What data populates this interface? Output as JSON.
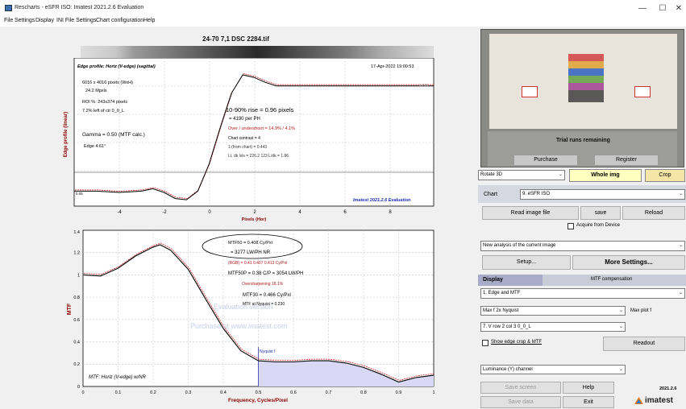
{
  "window": {
    "title": "Rescharts - eSFR ISO: Imatest 2021.2.6 Evaluation",
    "min_label": "—",
    "max_label": "☐",
    "close_label": "✕"
  },
  "menu": [
    "File",
    "Settings",
    "Display",
    "INI File Settings",
    "Chart configuration",
    "Help"
  ],
  "figure_title": "24-70 7,1 DSC 2284.tif",
  "edge_plot": {
    "header_left": "Edge profile: Horiz (V-edge) (sagittal)",
    "header_right": "17-Apr-2022 19:00:53",
    "info_lines": [
      "6016 x 4016 pixels (WxH)",
      "24.2 Mpxls",
      "ROI %: 243x374 pixels",
      "7.2% left of ctr 0_0_L"
    ],
    "gamma": "Gamma = 0.50 (MTF calc.)",
    "edge_angle": "Edge 4.61°",
    "rise": "10-90% rise = 0.96 pixels",
    "per_ph": "= 4190 per PH",
    "overshoot": "Over / undershoot = 14.9% / 4.1%",
    "contrast": "Chart contrast = 4",
    "chart_light": "1:(from chart) = 0.443",
    "levels": "Lt, dk lvls = 226.2 123 L/dk = 1.86",
    "watermark": "Imatest 2021.2.6 Evaluation",
    "ylabel": "Edge profile (linear)",
    "xlabel": "Pixels (Hor)",
    "xticks": [
      "-4",
      "-2",
      "0",
      "2",
      "4",
      "6",
      "8"
    ],
    "right_marker": "0.766",
    "left_marker": "0.05"
  },
  "mtf_plot": {
    "mtf50": "MTF50 = 0.408 Cy/Pxl",
    "mtf50_lw": "= 3277 LW/PH NR",
    "raw": "(RGB) = 0.41 0.407 0.413 Cy/Pxl",
    "mtf50p": "MTF50P = 0.38 C/P = 3054 LW/PH",
    "oversharp": "Oversharpening 18.1%",
    "mtf30": "MTF30 = 0.466 Cy/Pxl",
    "nyq": "MTF at Nyquist = 0.230",
    "watermark1": "Evaluation version",
    "watermark2": "Purchase at www.imatest.com",
    "nyquist_label": "Nyquist f",
    "legend": "MTF: Horiz (V-edge) w/NR",
    "ylabel": "MTF",
    "xlabel": "Frequency, Cycles/Pixel",
    "xticks": [
      "0",
      "0.1",
      "0.2",
      "0.3",
      "0.4",
      "0.5",
      "0.6",
      "0.7",
      "0.8",
      "0.9",
      "1"
    ],
    "yticks": [
      "0",
      "0.2",
      "0.4",
      "0.6",
      "0.8",
      "1",
      "1.2",
      "1.4"
    ]
  },
  "right_panel": {
    "trial_text": "Trial runs remaining",
    "purchase": "Purchase",
    "register": "Register",
    "rotate": "Rotate 3D",
    "whole_img": "Whole img",
    "crop": "Crop",
    "chart_label": "Chart",
    "chart_value": "9. eSFR ISO",
    "read_image": "Read image file",
    "save": "save",
    "reload": "Reload",
    "acquire": "Acquire from Device",
    "new_analysis": "New analysis of the current image",
    "setup": "Setup...",
    "more_settings": "More Settings...",
    "display_tab": "Display",
    "mtf_comp_tab": "MTF compensation",
    "display_select": "1. Edge and MTF",
    "max_select": "Max f  2x Nyquist",
    "max_plot": "Max plot f",
    "roi_select": "7. V row 2 col 3  0_0_L",
    "show_edge": "Show edge crop & MTF",
    "readout": "Readout",
    "luminance": "Luminance (Y) channel",
    "save_screen": "Save screen",
    "help": "Help",
    "version": "2021.2.6",
    "save_data": "Save data",
    "exit": "Exit",
    "brand": "imatest"
  },
  "chart_data": [
    {
      "type": "line",
      "title": "Edge profile: Horiz (V-edge) (sagittal)",
      "xlabel": "Pixels (Hor)",
      "ylabel": "Edge profile (linear)",
      "xlim": [
        -6,
        10
      ],
      "x": [
        -6,
        -5,
        -4,
        -3,
        -2.5,
        -2,
        -1.5,
        -1,
        -0.5,
        0,
        0.5,
        1,
        1.5,
        2,
        2.5,
        3,
        4,
        5,
        6,
        8,
        10
      ],
      "series": [
        {
          "values": [
            0.03,
            0.03,
            0.02,
            0.03,
            0.05,
            0.02,
            -0.03,
            -0.04,
            0.03,
            0.25,
            0.55,
            0.83,
            0.98,
            0.96,
            0.92,
            0.89,
            0.89,
            0.89,
            0.89,
            0.89,
            0.89
          ]
        }
      ]
    },
    {
      "type": "line",
      "xlabel": "Frequency, Cycles/Pixel",
      "ylabel": "MTF",
      "xlim": [
        0,
        1
      ],
      "ylim": [
        0,
        1.4
      ],
      "x": [
        0,
        0.05,
        0.1,
        0.15,
        0.2,
        0.22,
        0.25,
        0.3,
        0.35,
        0.4,
        0.45,
        0.5,
        0.55,
        0.6,
        0.65,
        0.7,
        0.75,
        0.8,
        0.85,
        0.9,
        0.95,
        1.0
      ],
      "series": [
        {
          "values": [
            1.0,
            0.99,
            1.06,
            1.17,
            1.25,
            1.27,
            1.22,
            1.05,
            0.78,
            0.52,
            0.32,
            0.23,
            0.22,
            0.22,
            0.23,
            0.23,
            0.21,
            0.17,
            0.11,
            0.04,
            0.08,
            0.1
          ]
        }
      ]
    }
  ]
}
